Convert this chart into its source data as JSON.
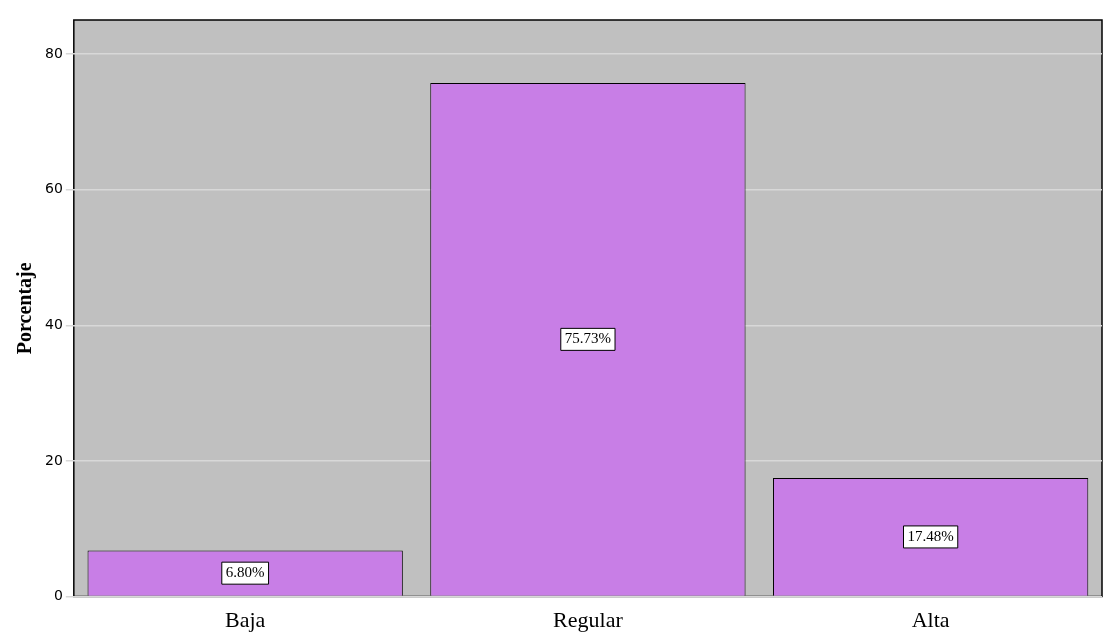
{
  "chart_data": {
    "type": "bar",
    "ylabel": "Porcentaje",
    "categories": [
      "Baja",
      "Regular",
      "Alta"
    ],
    "values": [
      6.8,
      75.73,
      17.48
    ],
    "color": "#c87ee6",
    "value_labels": [
      "6.80%",
      "75.73%",
      "17.48%"
    ],
    "ylim": [
      0,
      85
    ],
    "yticks": [
      0,
      20,
      40,
      60,
      80
    ],
    "grid": "y"
  }
}
